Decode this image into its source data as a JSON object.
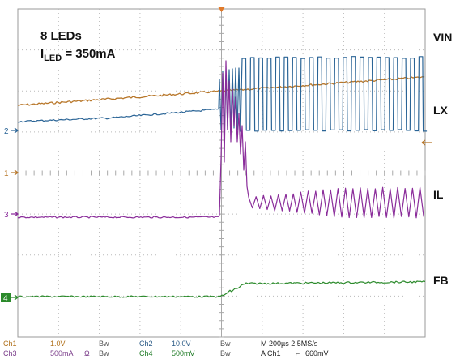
{
  "chart_data": {
    "type": "line",
    "title": "",
    "instrument": "oscilloscope",
    "grid": true,
    "x_range_divisions": [
      0,
      10
    ],
    "y_range_divisions": [
      0,
      8
    ],
    "annotations": {
      "line1": "8 LEDs",
      "line2_main": "I",
      "line2_sub": "LED",
      "line2_rest": " = 350mA"
    },
    "channels": [
      {
        "id": 1,
        "label": "VIN",
        "marker": "1",
        "color": "#b8772a",
        "scale": "1.0V"
      },
      {
        "id": 2,
        "label": "LX",
        "marker": "2",
        "color": "#2a6496",
        "scale": "10.0V"
      },
      {
        "id": 3,
        "label": "IL",
        "marker": "3",
        "color": "#8a2c9a",
        "scale": "500mA"
      },
      {
        "id": 4,
        "label": "FB",
        "marker": "4",
        "color": "#2b8a2b",
        "scale": "500mV"
      }
    ],
    "status_bar": {
      "ch1": "Ch1",
      "ch1_scale": "1.0V",
      "bw1": "Bw",
      "ch2": "Ch2",
      "ch2_scale": "10.0V",
      "bw2": "Bw",
      "ch3": "Ch3",
      "ch3_scale": "500mA",
      "ohm": "Ω",
      "bw3": "Bw",
      "ch4": "Ch4",
      "ch4_scale": "500mV",
      "bw4": "Bw",
      "timebase": "M 200µs 2.5MS/s",
      "trigger_src": "A  Ch1",
      "trigger_slope": "⌐",
      "trigger_level": "660mV"
    }
  }
}
